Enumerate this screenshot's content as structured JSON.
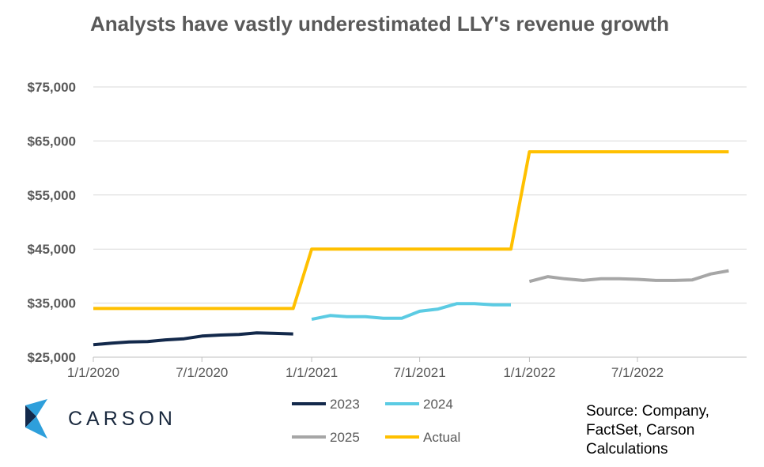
{
  "title": "Analysts have vastly underestimated LLY's revenue growth",
  "source": "Source: Company, FactSet, Carson Calculations",
  "logo_text": "CARSON",
  "colors": {
    "series_2023": "#13294b",
    "series_2024": "#5bcbe3",
    "series_2025": "#a6a6a6",
    "series_actual": "#ffc000",
    "grid": "#d9d9d9",
    "text": "#595959",
    "logo_dark": "#13294b",
    "logo_light": "#2e9fdb"
  },
  "chart_data": {
    "type": "line",
    "title": "Analysts have vastly underestimated LLY's revenue growth",
    "xlabel": "",
    "ylabel": "",
    "x_axis": "date",
    "xlim": [
      "2020-01-01",
      "2022-12-31"
    ],
    "ylim": [
      25000,
      75000
    ],
    "yticks": [
      25000,
      35000,
      45000,
      55000,
      65000,
      75000
    ],
    "ytick_labels": [
      "$25,000",
      "$35,000",
      "$45,000",
      "$55,000",
      "$65,000",
      "$75,000"
    ],
    "xticks": [
      "2020-01-01",
      "2020-07-01",
      "2021-01-01",
      "2021-07-01",
      "2022-01-01",
      "2022-07-01"
    ],
    "xtick_labels": [
      "1/1/2020",
      "7/1/2020",
      "1/1/2021",
      "7/1/2021",
      "1/1/2022",
      "7/1/2022"
    ],
    "grid": "horizontal",
    "legend_position": "bottom",
    "series": [
      {
        "name": "2023",
        "color": "#13294b",
        "x": [
          "2020-01-01",
          "2020-02-01",
          "2020-03-01",
          "2020-04-01",
          "2020-05-01",
          "2020-06-01",
          "2020-07-01",
          "2020-08-01",
          "2020-09-01",
          "2020-10-01",
          "2020-11-01",
          "2020-12-01"
        ],
        "y": [
          27300,
          27600,
          27800,
          27900,
          28200,
          28400,
          28900,
          29100,
          29200,
          29500,
          29400,
          29300
        ]
      },
      {
        "name": "2024",
        "color": "#5bcbe3",
        "x": [
          "2021-01-01",
          "2021-02-01",
          "2021-03-01",
          "2021-04-01",
          "2021-05-01",
          "2021-06-01",
          "2021-07-01",
          "2021-08-01",
          "2021-09-01",
          "2021-10-01",
          "2021-11-01",
          "2021-12-01"
        ],
        "y": [
          32000,
          32700,
          32500,
          32500,
          32200,
          32200,
          33500,
          33900,
          34900,
          34900,
          34700,
          34700
        ]
      },
      {
        "name": "2025",
        "color": "#a6a6a6",
        "x": [
          "2022-01-01",
          "2022-02-01",
          "2022-03-01",
          "2022-04-01",
          "2022-05-01",
          "2022-06-01",
          "2022-07-01",
          "2022-08-01",
          "2022-09-01",
          "2022-10-01",
          "2022-11-01",
          "2022-12-01"
        ],
        "y": [
          39000,
          39900,
          39500,
          39200,
          39500,
          39500,
          39400,
          39200,
          39200,
          39300,
          40400,
          41000
        ]
      },
      {
        "name": "Actual",
        "color": "#ffc000",
        "x": [
          "2020-01-01",
          "2020-12-01",
          "2021-01-01",
          "2021-12-01",
          "2022-01-01",
          "2022-12-01"
        ],
        "y": [
          34000,
          34000,
          45000,
          45000,
          63000,
          63000
        ]
      }
    ]
  }
}
